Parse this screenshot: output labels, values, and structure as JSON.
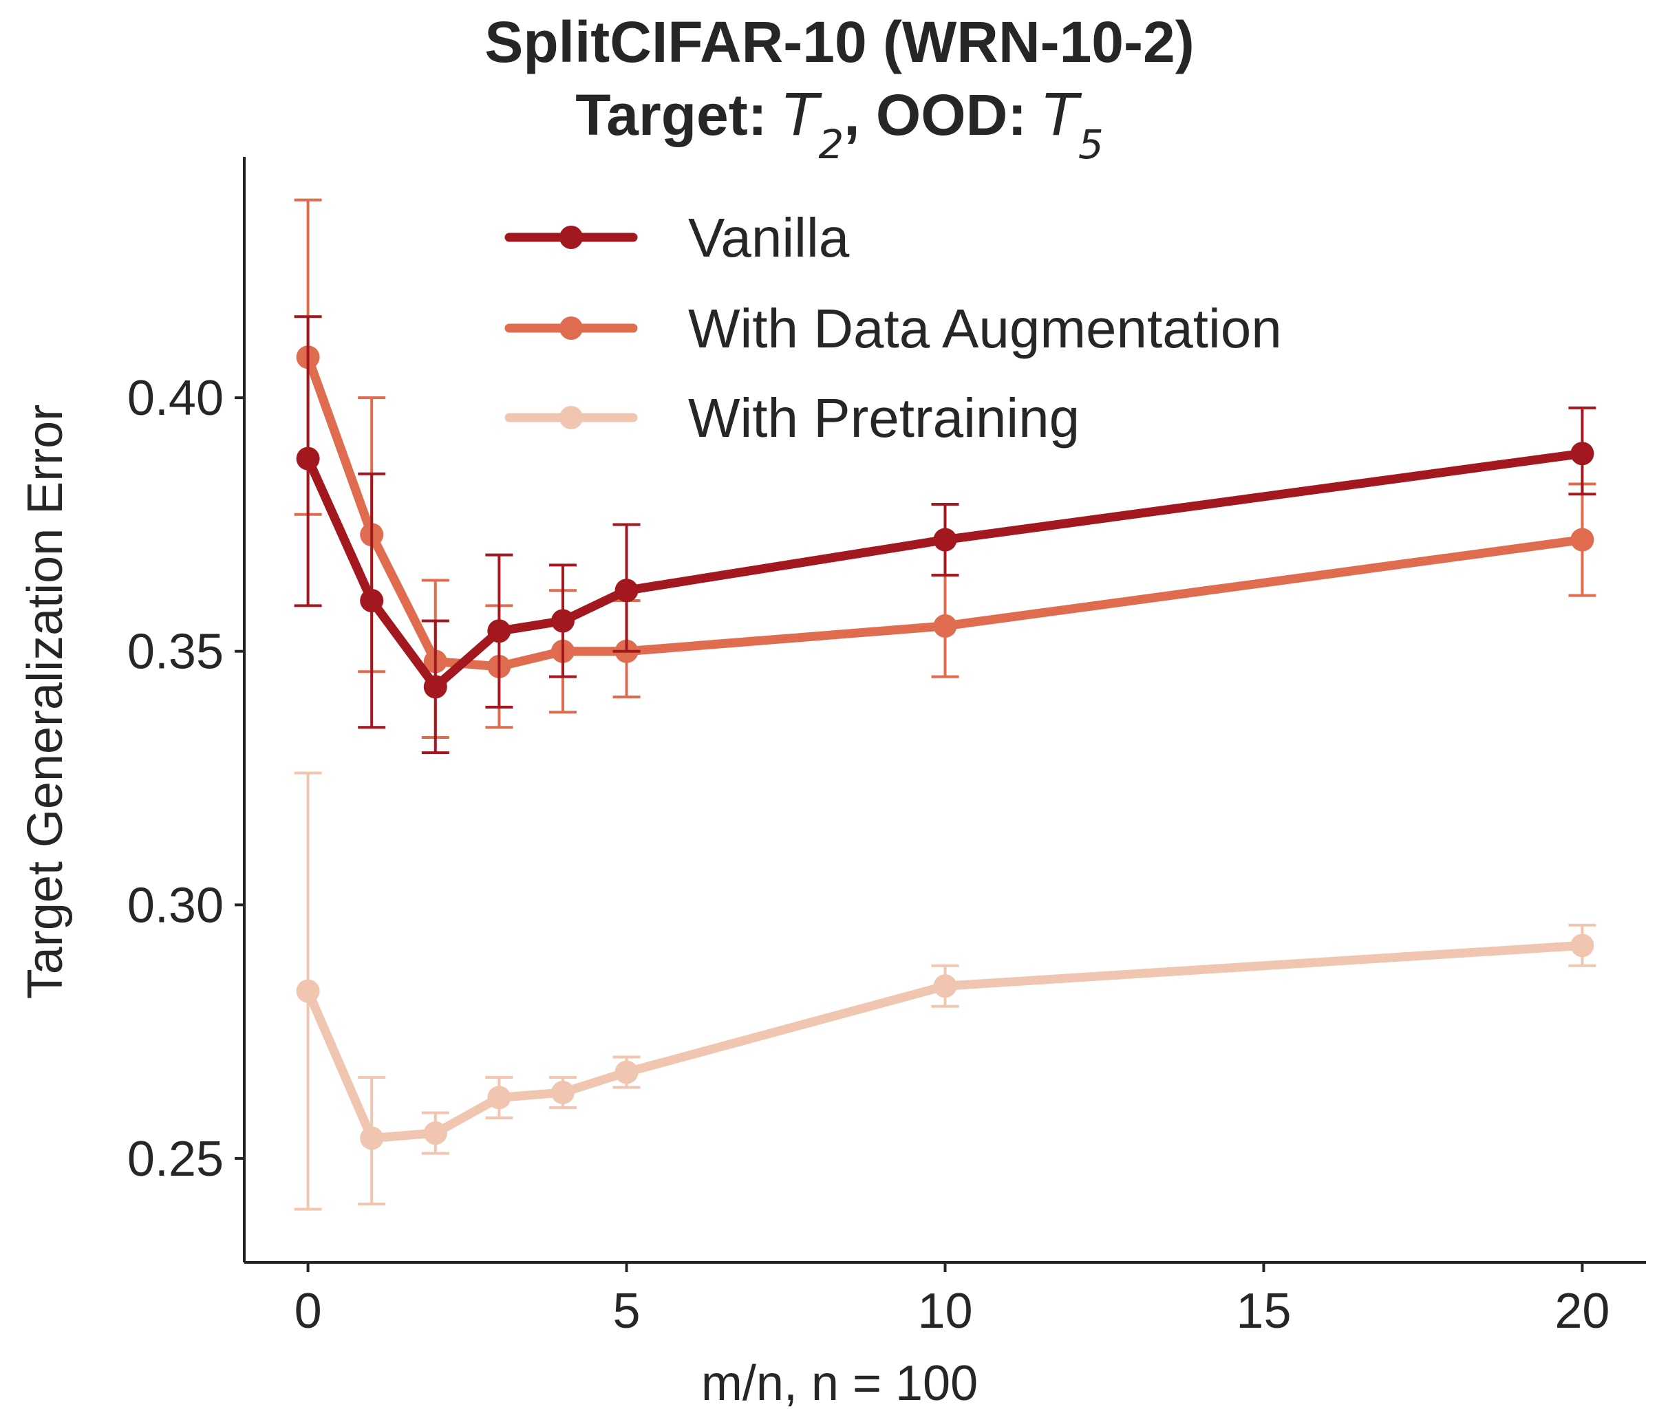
{
  "chart_data": {
    "type": "line",
    "title_line1": "SplitCIFAR-10 (WRN-10-2)",
    "title_line2": {
      "prefix": "Target: ",
      "target_symbol": "T",
      "target_sub": "2",
      "middle": ", OOD: ",
      "ood_symbol": "T",
      "ood_sub": "5"
    },
    "xlabel": "m/n, n = 100",
    "ylabel": "Target Generalization Error",
    "xlim": [
      -1,
      21
    ],
    "ylim": [
      0.2295,
      0.4475
    ],
    "xticks": [
      0,
      5,
      10,
      15,
      20
    ],
    "xtick_labels": [
      "0",
      "5",
      "10",
      "15",
      "20"
    ],
    "yticks": [
      0.25,
      0.3,
      0.35,
      0.4
    ],
    "ytick_labels": [
      "0.25",
      "0.30",
      "0.35",
      "0.40"
    ],
    "grid": false,
    "legend_position": "upper center",
    "x": [
      0,
      1,
      2,
      3,
      4,
      5,
      10,
      20
    ],
    "series": [
      {
        "name": "Vanilla",
        "color": "#a3171f",
        "values": [
          0.388,
          0.36,
          0.343,
          0.354,
          0.356,
          0.362,
          0.372,
          0.389
        ],
        "err_low": [
          0.359,
          0.335,
          0.33,
          0.339,
          0.345,
          0.35,
          0.365,
          0.381
        ],
        "err_high": [
          0.416,
          0.385,
          0.356,
          0.369,
          0.367,
          0.375,
          0.379,
          0.398
        ]
      },
      {
        "name": "With Data Augmentation",
        "color": "#df6c4e",
        "values": [
          0.408,
          0.373,
          0.348,
          0.347,
          0.35,
          0.35,
          0.355,
          0.372
        ],
        "err_low": [
          0.377,
          0.346,
          0.333,
          0.335,
          0.338,
          0.341,
          0.345,
          0.361
        ],
        "err_high": [
          0.439,
          0.4,
          0.364,
          0.359,
          0.362,
          0.36,
          0.365,
          0.383
        ]
      },
      {
        "name": "With Pretraining",
        "color": "#f0c6b0",
        "values": [
          0.283,
          0.254,
          0.255,
          0.262,
          0.263,
          0.267,
          0.284,
          0.292
        ],
        "err_low": [
          0.24,
          0.241,
          0.251,
          0.258,
          0.26,
          0.264,
          0.28,
          0.288
        ],
        "err_high": [
          0.326,
          0.266,
          0.259,
          0.266,
          0.266,
          0.27,
          0.288,
          0.296
        ]
      }
    ]
  }
}
